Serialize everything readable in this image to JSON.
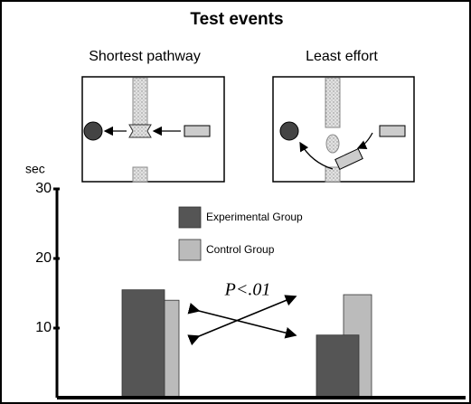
{
  "chart_data": {
    "type": "bar",
    "title": "Test events",
    "panel_titles": [
      "Shortest pathway",
      "Least effort"
    ],
    "y_label": "sec",
    "categories": [
      null,
      null
    ],
    "series": [
      {
        "name": "Experimental Group",
        "color": "#555555",
        "values": [
          15.5,
          9.0
        ]
      },
      {
        "name": "Control Group",
        "color": "#bbbbbb",
        "values": [
          14.0,
          14.8
        ]
      }
    ],
    "ylim": [
      0,
      30
    ],
    "yticks": [
      10,
      20,
      30
    ],
    "annotation": "P<.01"
  }
}
